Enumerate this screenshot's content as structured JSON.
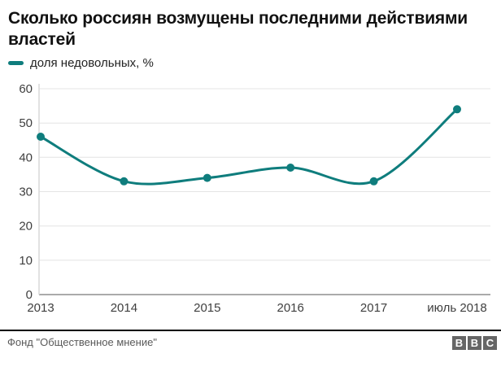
{
  "header": {
    "title": "Сколько россиян возмущены последними действиями властей"
  },
  "legend": {
    "label": "доля недовольных, %"
  },
  "colors": {
    "line": "#0f7d7d",
    "grid": "#e4e4e4",
    "axis": "#d9d9d9",
    "baseline": "#8f8f8f",
    "tick_text": "#3f3f3f",
    "title_text": "#111111",
    "source_text": "#595959",
    "bbc_block": "#666666"
  },
  "chart_data": {
    "type": "line",
    "title": "Сколько россиян возмущены последними действиями властей",
    "categories": [
      "2013",
      "2014",
      "2015",
      "2016",
      "2017",
      "июль 2018"
    ],
    "series": [
      {
        "name": "доля недовольных, %",
        "values": [
          46,
          33,
          34,
          37,
          33,
          54
        ]
      }
    ],
    "xlabel": "",
    "ylabel": "доля недовольных, %",
    "ylim": [
      0,
      60
    ],
    "yticks": [
      0,
      10,
      20,
      30,
      40,
      50,
      60
    ],
    "grid": "horizontal",
    "smooth": true,
    "markers": true,
    "legend_position": "top-left"
  },
  "footer": {
    "source": "Фонд \"Общественное мнение\"",
    "logo_letters": [
      "B",
      "B",
      "C"
    ]
  }
}
